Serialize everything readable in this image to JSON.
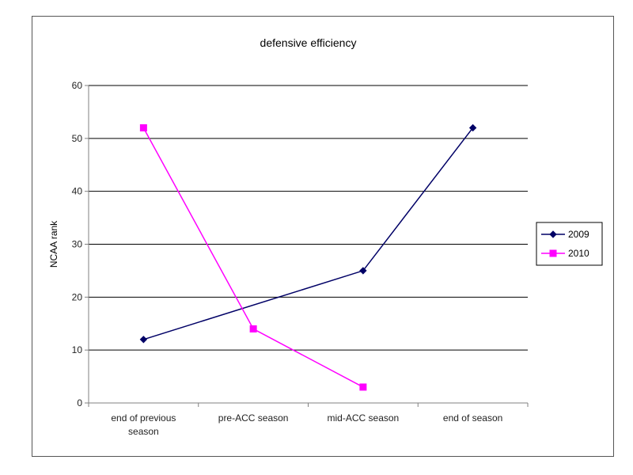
{
  "chart_data": {
    "type": "line",
    "title": "defensive efficiency",
    "xlabel": "",
    "ylabel": "NCAA rank",
    "categories": [
      [
        "end of previous",
        "season"
      ],
      [
        "pre-ACC season"
      ],
      [
        "mid-ACC season"
      ],
      [
        "end of season"
      ]
    ],
    "ylim": [
      0,
      60
    ],
    "yticks": [
      0,
      10,
      20,
      30,
      40,
      50,
      60
    ],
    "grid": true,
    "legend": "right",
    "series": [
      {
        "name": "2009",
        "values": [
          12,
          null,
          25,
          52
        ],
        "color": "#000066",
        "marker": "diamond"
      },
      {
        "name": "2010",
        "values": [
          52,
          14,
          3,
          null
        ],
        "color": "#ff00ff",
        "marker": "square"
      }
    ]
  }
}
